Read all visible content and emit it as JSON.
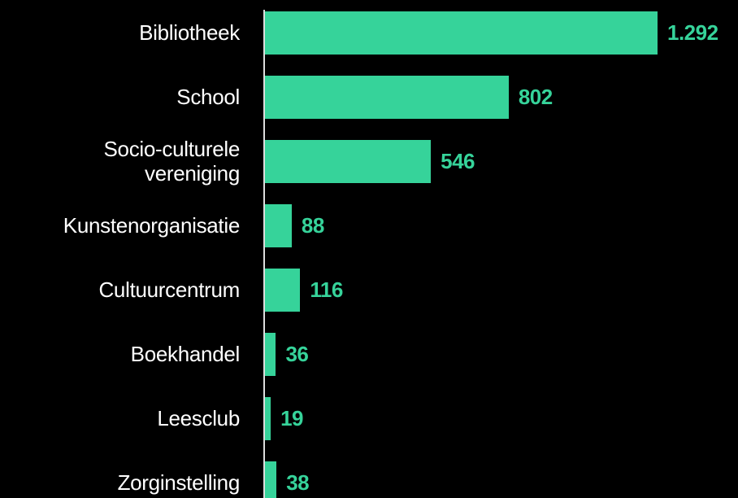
{
  "chart_data": {
    "type": "bar",
    "orientation": "horizontal",
    "categories": [
      "Bibliotheek",
      "School",
      "Socio-culturele\nvereniging",
      "Kunstenorganisatie",
      "Cultuurcentrum",
      "Boekhandel",
      "Leesclub",
      "Zorginstelling"
    ],
    "values": [
      1292,
      802,
      546,
      88,
      116,
      36,
      19,
      38
    ],
    "value_labels": [
      "1.292",
      "802",
      "546",
      "88",
      "116",
      "36",
      "19",
      "38"
    ],
    "color": "#36d39a"
  }
}
